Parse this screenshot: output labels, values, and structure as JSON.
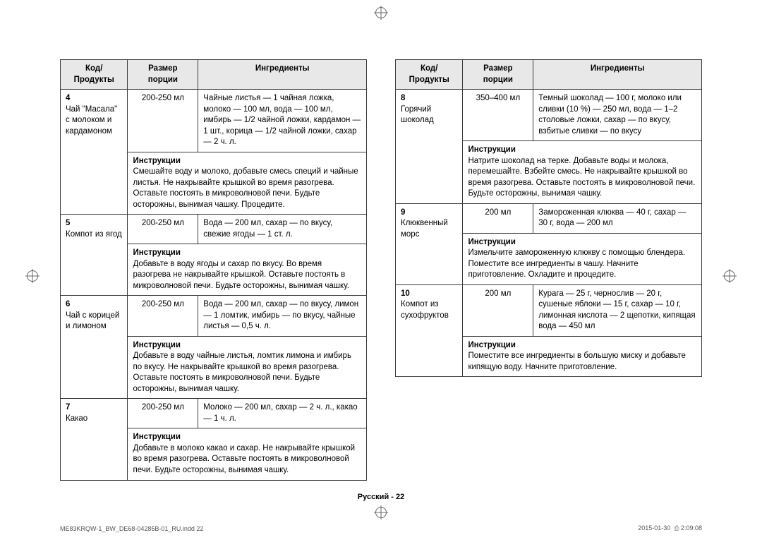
{
  "headers": {
    "code": "Код/\nПродукты",
    "portion": "Размер порции",
    "ingredients": "Ингредиенты"
  },
  "instructions_label": "Инструкции",
  "left": [
    {
      "code": "4",
      "name": "Чай \"Масала\" с молоком и кардамоном",
      "portion": "200-250 мл",
      "ingredients": "Чайные листья — 1 чайная ложка, молоко — 100 мл, вода — 100 мл, имбирь — 1/2 чайной ложки, кардамон — 1 шт., корица — 1/2 чайной ложки, сахар — 2 ч. л.",
      "instructions": "Смешайте воду и молоко, добавьте смесь специй и чайные листья. Не накрывайте крышкой во время разогрева. Оставьте постоять в микроволновой печи. Будьте осторожны, вынимая чашку. Процедите."
    },
    {
      "code": "5",
      "name": "Компот из ягод",
      "portion": "200-250 мл",
      "ingredients": "Вода — 200 мл, сахар — по вкусу, свежие ягоды — 1 ст. л.",
      "instructions": "Добавьте в воду ягоды и сахар по вкусу. Во время разогрева не накрывайте крышкой. Оставьте постоять в микроволновой печи. Будьте осторожны, вынимая чашку."
    },
    {
      "code": "6",
      "name": "Чай с корицей и лимоном",
      "portion": "200-250 мл",
      "ingredients": "Вода — 200 мл, сахар — по вкусу, лимон — 1 ломтик, имбирь — по вкусу, чайные листья — 0,5 ч. л.",
      "instructions": "Добавьте в воду чайные листья, ломтик лимона и имбирь по вкусу. Не накрывайте крышкой во время разогрева. Оставьте постоять в микроволновой печи. Будьте осторожны, вынимая чашку."
    },
    {
      "code": "7",
      "name": "Какао",
      "portion": "200-250 мл",
      "ingredients": "Молоко — 200 мл, сахар — 2 ч. л., какао — 1 ч. л.",
      "instructions": "Добавьте в молоко какао и сахар. Не накрывайте крышкой во время разогрева. Оставьте постоять в микроволновой печи. Будьте осторожны, вынимая чашку."
    }
  ],
  "right": [
    {
      "code": "8",
      "name": "Горячий шоколад",
      "portion": "350–400 мл",
      "ingredients": "Темный шоколад — 100 г, молоко или сливки (10 %) — 250 мл, вода — 1–2 столовые ложки, сахар — по вкусу, взбитые сливки — по вкусу",
      "instructions": "Натрите шоколад на терке. Добавьте воды и молока, перемешайте. Взбейте смесь. Не накрывайте крышкой во время разогрева. Оставьте постоять в микроволновой печи. Будьте осторожны, вынимая чашку."
    },
    {
      "code": "9",
      "name": "Клюквенный морс",
      "portion": "200 мл",
      "ingredients": "Замороженная клюква — 40 г, сахар — 30 г, вода — 200 мл",
      "instructions": "Измельчите замороженную клюкву с помощью блендера. Поместите все ингредиенты в чашу. Начните приготовление. Охладите и процедите."
    },
    {
      "code": "10",
      "name": "Компот из сухофруктов",
      "portion": "200 мл",
      "ingredients": "Курага — 25 г, чернослив — 20 г, сушеные яблоки — 15 г, сахар — 10 г, лимонная кислота — 2 щепотки, кипящая вода — 450 мл",
      "instructions": "Поместите все ингредиенты в большую миску и добавьте кипящую воду. Начните приготовление."
    }
  ],
  "footer": {
    "center": "Русский - 22",
    "left": "ME83KRQW-1_BW_DE68-04285B-01_RU.indd   22",
    "right_date": "2015-01-30",
    "right_time": "2:09:08"
  }
}
